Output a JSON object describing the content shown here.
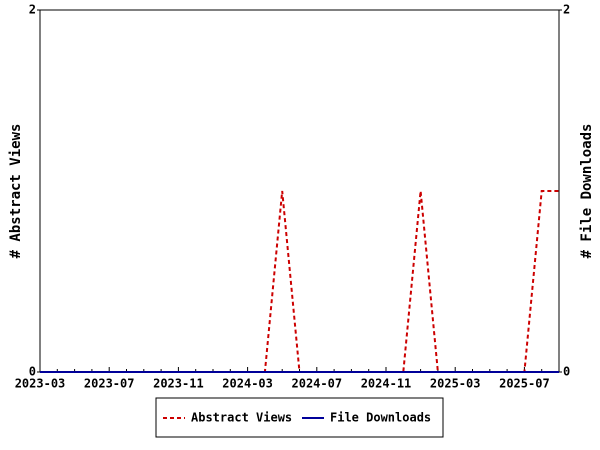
{
  "chart_data": {
    "type": "line",
    "categories": [
      "2023-03",
      null,
      null,
      null,
      "2023-07",
      null,
      null,
      null,
      "2023-11",
      null,
      null,
      null,
      "2024-03",
      null,
      null,
      null,
      "2024-07",
      null,
      null,
      null,
      "2024-11",
      null,
      null,
      null,
      "2025-03",
      null,
      null,
      null,
      "2025-07",
      null,
      null
    ],
    "series": [
      {
        "name": "Abstract Views",
        "color": "#cc0000",
        "dash": true,
        "axis": "y",
        "values": [
          0,
          0,
          0,
          0,
          0,
          0,
          0,
          0,
          0,
          0,
          0,
          0,
          0,
          0,
          1,
          0,
          0,
          0,
          0,
          0,
          0,
          0,
          1,
          0,
          0,
          0,
          0,
          0,
          0,
          1,
          1
        ]
      },
      {
        "name": "File Downloads",
        "color": "#000099",
        "dash": false,
        "axis": "y2",
        "values": [
          0,
          0,
          0,
          0,
          0,
          0,
          0,
          0,
          0,
          0,
          0,
          0,
          0,
          0,
          0,
          0,
          0,
          0,
          0,
          0,
          0,
          0,
          0,
          0,
          0,
          0,
          0,
          0,
          0,
          0,
          0
        ]
      }
    ],
    "y_label": "# Abstract Views",
    "y2_label": "# File Downloads",
    "ylim": [
      0,
      2
    ],
    "yticks": [
      0,
      2
    ],
    "y2lim": [
      0,
      2
    ],
    "y2ticks": [
      0,
      2
    ],
    "legend": "bottom"
  }
}
